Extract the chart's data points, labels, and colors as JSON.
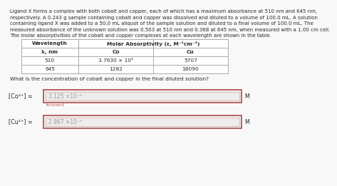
{
  "paragraph_lines": [
    "Ligand X forms a complex with both cobalt and copper, each of which has a maximum absorbance at 510 nm and 645 nm,",
    "respectively. A 0.243 g sample containing cobalt and copper was dissolved and diluted to a volume of 100.0 mL. A solution",
    "containing ligand X was added to a 50.0 mL aliquot of the sample solution and diluted to a final volume of 100.0 mL. The",
    "measured absorbance of the unknown solution was 0.503 at 510 nm and 0.368 at 645 nm, when measured with a 1.00 cm cell.",
    "The molar absorptivities of the cobalt and copper complexes at each wavelength are shown in the table."
  ],
  "table_header_left": "Wavelength",
  "table_header_right": "Molar Absorptivity (ε, M⁻¹cm⁻¹)",
  "col_headers": [
    "λ, nm",
    "Co",
    "Cu"
  ],
  "row1": [
    "510",
    "3.7630 × 10²",
    "5707"
  ],
  "row2": [
    "645",
    "1282",
    "18090"
  ],
  "question": "What is the concentration of cobalt and copper in the final diluted solution?",
  "co_label": "[Co²⁺] =",
  "co_value": "3.125",
  "co_exp": "×10⁻⁵",
  "co_incorrect": "Incorrect",
  "cu_label": "[Cu²⁺] =",
  "cu_value": "2.867",
  "cu_exp": "×10⁻⁵",
  "unit": "M",
  "bg_color": "#f8f8f8",
  "text_color": "#2a2a2a",
  "table_border_color": "#aaaaaa",
  "box_border_color": "#b05858",
  "box_fill_color": "#f7f0f0",
  "input_fill_color": "#eeecec",
  "incorrect_color": "#c0504d",
  "para_fontsize": 5.0,
  "table_fontsize": 5.3,
  "question_fontsize": 5.3,
  "label_fontsize": 5.8,
  "value_fontsize": 5.5,
  "value_color": "#999999",
  "unit_fontsize": 5.8
}
